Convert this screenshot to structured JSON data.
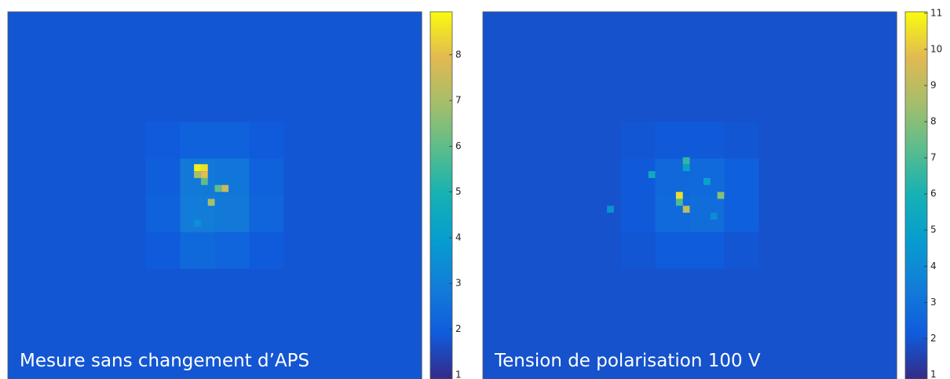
{
  "chart_data": [
    {
      "type": "heatmap",
      "annotation": "Mesure sans changement d’APS",
      "xlim": [
        0,
        60
      ],
      "ylim": [
        53,
        0
      ],
      "clim": [
        0.91,
        8.94
      ],
      "cticks": [
        1,
        2,
        3,
        4,
        5,
        6,
        7,
        8
      ],
      "z": [
        [
          1.8,
          1.8,
          1.8,
          1.8,
          1.8,
          1.8,
          1.8,
          1.8,
          1.8,
          1.8,
          1.8,
          1.8
        ],
        [
          1.8,
          1.8,
          1.8,
          1.8,
          1.8,
          1.8,
          1.8,
          1.8,
          1.8,
          1.8,
          1.8,
          1.8
        ],
        [
          1.8,
          1.8,
          1.8,
          1.8,
          1.8,
          1.8,
          1.8,
          1.8,
          1.8,
          1.8,
          1.8,
          1.8
        ],
        [
          1.8,
          1.8,
          1.8,
          1.8,
          1.9,
          2.1,
          2.1,
          1.9,
          1.8,
          1.8,
          1.8,
          1.8
        ],
        [
          1.8,
          1.8,
          1.8,
          1.8,
          2.0,
          2.8,
          2.7,
          2.1,
          1.8,
          1.8,
          1.8,
          1.8
        ],
        [
          1.8,
          1.8,
          1.8,
          1.8,
          2.1,
          2.9,
          2.8,
          2.2,
          1.8,
          1.8,
          1.8,
          1.8
        ],
        [
          1.8,
          1.8,
          1.8,
          1.8,
          1.9,
          2.3,
          2.2,
          1.9,
          1.8,
          1.8,
          1.8,
          1.8
        ],
        [
          1.8,
          1.8,
          1.8,
          1.8,
          1.8,
          1.8,
          1.8,
          1.8,
          1.8,
          1.8,
          1.8,
          1.8
        ],
        [
          1.8,
          1.8,
          1.8,
          1.8,
          1.8,
          1.8,
          1.8,
          1.8,
          1.8,
          1.8,
          1.8,
          1.8
        ],
        [
          1.8,
          1.8,
          1.8,
          1.8,
          1.8,
          1.8,
          1.8,
          1.8,
          1.8,
          1.8,
          1.8,
          1.8
        ]
      ],
      "cells": [
        [
          27,
          22,
          8.8
        ],
        [
          28,
          22,
          8.5
        ],
        [
          27,
          23,
          7
        ],
        [
          28,
          23,
          8
        ],
        [
          28,
          24,
          6
        ],
        [
          30,
          25,
          6
        ],
        [
          31,
          25,
          7.5
        ],
        [
          29,
          27,
          7
        ],
        [
          27,
          30,
          3.5
        ]
      ]
    },
    {
      "type": "heatmap",
      "annotation": "Tension de polarisation 100 V",
      "xlim": [
        0,
        60
      ],
      "ylim": [
        53,
        0
      ],
      "clim": [
        0.88,
        11.04
      ],
      "cticks": [
        1,
        2,
        3,
        4,
        5,
        6,
        7,
        8,
        9,
        10,
        11
      ],
      "z": [
        [
          1.9,
          1.9,
          1.9,
          1.9,
          1.9,
          1.9,
          1.9,
          1.9,
          1.9,
          1.9,
          1.9,
          1.9
        ],
        [
          1.9,
          1.9,
          1.9,
          1.9,
          1.9,
          1.9,
          1.9,
          1.9,
          1.9,
          1.9,
          1.9,
          1.9
        ],
        [
          1.9,
          1.9,
          1.9,
          1.9,
          1.9,
          1.9,
          1.9,
          1.9,
          1.9,
          1.9,
          1.9,
          1.9
        ],
        [
          1.9,
          1.9,
          1.9,
          1.9,
          2.0,
          2.1,
          2.1,
          2.0,
          1.9,
          1.9,
          1.9,
          1.9
        ],
        [
          1.9,
          1.9,
          1.9,
          1.9,
          2.1,
          2.6,
          2.7,
          2.3,
          1.9,
          1.9,
          1.9,
          1.9
        ],
        [
          1.9,
          1.9,
          1.9,
          1.9,
          2.1,
          2.7,
          2.8,
          2.3,
          1.9,
          1.9,
          1.9,
          1.9
        ],
        [
          1.9,
          1.9,
          1.9,
          1.9,
          2.0,
          2.2,
          2.2,
          2.0,
          1.9,
          1.9,
          1.9,
          1.9
        ],
        [
          1.9,
          1.9,
          1.9,
          1.9,
          1.9,
          1.9,
          1.9,
          1.9,
          1.9,
          1.9,
          1.9,
          1.9
        ],
        [
          1.9,
          1.9,
          1.9,
          1.9,
          1.9,
          1.9,
          1.9,
          1.9,
          1.9,
          1.9,
          1.9,
          1.9
        ],
        [
          1.9,
          1.9,
          1.9,
          1.9,
          1.9,
          1.9,
          1.9,
          1.9,
          1.9,
          1.9,
          1.9,
          1.9
        ]
      ],
      "cells": [
        [
          29,
          21,
          6.5
        ],
        [
          29,
          22,
          5
        ],
        [
          24,
          23,
          5.5
        ],
        [
          32,
          24,
          5
        ],
        [
          28,
          26,
          10.5
        ],
        [
          34,
          26,
          8
        ],
        [
          28,
          27,
          7
        ],
        [
          29,
          28,
          9
        ],
        [
          18,
          28,
          4.3
        ],
        [
          33,
          29,
          4
        ]
      ]
    }
  ]
}
